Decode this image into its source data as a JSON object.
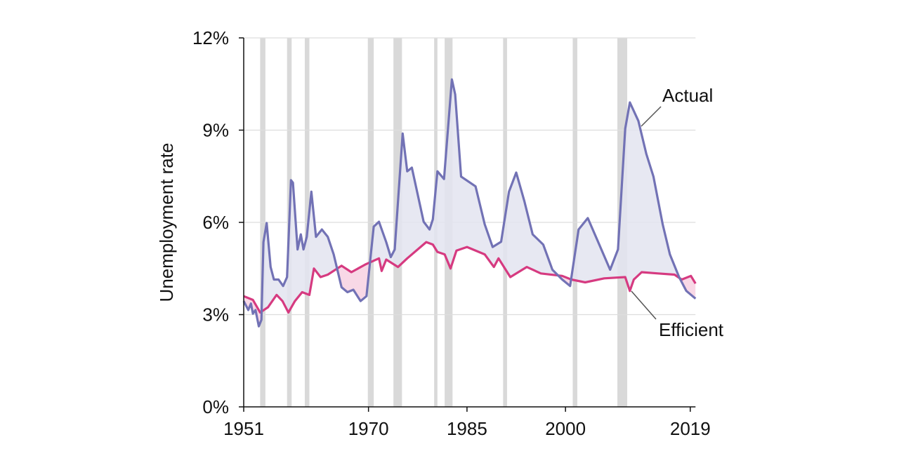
{
  "chart_data": {
    "type": "line",
    "title": "",
    "xlabel": "",
    "ylabel": "Unemployment rate",
    "xlim": [
      1951,
      2019.8
    ],
    "ylim": [
      0,
      12
    ],
    "x_ticks": [
      1951,
      1970,
      1985,
      2000,
      2019
    ],
    "x_tick_labels": [
      "1951",
      "1970",
      "1985",
      "2000",
      "2019"
    ],
    "y_ticks": [
      0,
      3,
      6,
      9,
      12
    ],
    "y_tick_labels": [
      "0%",
      "3%",
      "6%",
      "9%",
      "12%"
    ],
    "grid": "horizontal",
    "colors": {
      "actual": "#7272b5",
      "efficient": "#d63a80",
      "gap_above": "#e3e4f0",
      "gap_below": "#f8d8e6",
      "recession": "#d9d9d9",
      "grid": "#dddddd"
    },
    "recessions": [
      [
        1953.5,
        1954.3
      ],
      [
        1957.6,
        1958.3
      ],
      [
        1960.3,
        1961.0
      ],
      [
        1969.9,
        1970.8
      ],
      [
        1973.8,
        1975.1
      ],
      [
        1980.0,
        1980.5
      ],
      [
        1981.6,
        1982.8
      ],
      [
        1990.5,
        1991.1
      ],
      [
        2001.1,
        2001.8
      ],
      [
        2007.9,
        2009.4
      ]
    ],
    "series": [
      {
        "name": "Actual",
        "points": [
          [
            1951.0,
            3.44
          ],
          [
            1951.7,
            3.15
          ],
          [
            1952.1,
            3.36
          ],
          [
            1952.4,
            3.03
          ],
          [
            1952.8,
            3.15
          ],
          [
            1953.3,
            2.62
          ],
          [
            1953.7,
            2.83
          ],
          [
            1954.0,
            5.36
          ],
          [
            1954.5,
            5.98
          ],
          [
            1955.1,
            4.55
          ],
          [
            1955.6,
            4.14
          ],
          [
            1956.3,
            4.14
          ],
          [
            1957.0,
            3.93
          ],
          [
            1957.6,
            4.22
          ],
          [
            1958.2,
            7.37
          ],
          [
            1958.5,
            7.29
          ],
          [
            1959.2,
            5.12
          ],
          [
            1959.7,
            5.61
          ],
          [
            1960.1,
            5.12
          ],
          [
            1960.6,
            5.53
          ],
          [
            1961.3,
            7.0
          ],
          [
            1962.0,
            5.53
          ],
          [
            1962.9,
            5.77
          ],
          [
            1963.8,
            5.53
          ],
          [
            1964.7,
            4.96
          ],
          [
            1965.9,
            3.89
          ],
          [
            1966.8,
            3.73
          ],
          [
            1967.7,
            3.81
          ],
          [
            1968.8,
            3.44
          ],
          [
            1969.7,
            3.6
          ],
          [
            1970.8,
            5.86
          ],
          [
            1971.6,
            6.02
          ],
          [
            1972.7,
            5.36
          ],
          [
            1973.4,
            4.87
          ],
          [
            1974.0,
            5.12
          ],
          [
            1975.2,
            8.89
          ],
          [
            1975.9,
            7.66
          ],
          [
            1976.6,
            7.78
          ],
          [
            1978.4,
            6.02
          ],
          [
            1979.3,
            5.77
          ],
          [
            1979.8,
            6.1
          ],
          [
            1980.5,
            7.66
          ],
          [
            1981.5,
            7.41
          ],
          [
            1982.7,
            10.65
          ],
          [
            1983.2,
            10.16
          ],
          [
            1984.1,
            7.49
          ],
          [
            1985.2,
            7.33
          ],
          [
            1986.3,
            7.17
          ],
          [
            1987.7,
            5.94
          ],
          [
            1988.9,
            5.2
          ],
          [
            1990.2,
            5.37
          ],
          [
            1991.4,
            7.0
          ],
          [
            1992.5,
            7.62
          ],
          [
            1993.75,
            6.68
          ],
          [
            1995.0,
            5.61
          ],
          [
            1996.6,
            5.28
          ],
          [
            1998.0,
            4.46
          ],
          [
            1999.5,
            4.14
          ],
          [
            2000.7,
            3.93
          ],
          [
            2002.0,
            5.77
          ],
          [
            2003.4,
            6.14
          ],
          [
            2004.8,
            5.45
          ],
          [
            2006.8,
            4.46
          ],
          [
            2008.0,
            5.12
          ],
          [
            2009.1,
            9.05
          ],
          [
            2009.8,
            9.9
          ],
          [
            2011.1,
            9.3
          ],
          [
            2012.3,
            8.23
          ],
          [
            2013.4,
            7.49
          ],
          [
            2014.8,
            5.94
          ],
          [
            2015.9,
            4.96
          ],
          [
            2017.3,
            4.22
          ],
          [
            2018.4,
            3.77
          ],
          [
            2019.8,
            3.52
          ]
        ]
      },
      {
        "name": "Efficient",
        "points": [
          [
            1951.0,
            3.6
          ],
          [
            1952.4,
            3.48
          ],
          [
            1953.5,
            3.07
          ],
          [
            1954.7,
            3.24
          ],
          [
            1956.0,
            3.64
          ],
          [
            1956.9,
            3.44
          ],
          [
            1957.8,
            3.07
          ],
          [
            1958.8,
            3.44
          ],
          [
            1959.9,
            3.73
          ],
          [
            1961.0,
            3.64
          ],
          [
            1961.7,
            4.5
          ],
          [
            1962.7,
            4.22
          ],
          [
            1963.8,
            4.3
          ],
          [
            1965.9,
            4.59
          ],
          [
            1967.4,
            4.38
          ],
          [
            1969.5,
            4.63
          ],
          [
            1971.6,
            4.83
          ],
          [
            1972.0,
            4.42
          ],
          [
            1972.7,
            4.79
          ],
          [
            1974.5,
            4.55
          ],
          [
            1975.9,
            4.83
          ],
          [
            1978.8,
            5.36
          ],
          [
            1979.8,
            5.28
          ],
          [
            1980.5,
            5.04
          ],
          [
            1981.6,
            4.96
          ],
          [
            1982.5,
            4.5
          ],
          [
            1983.4,
            5.08
          ],
          [
            1985.0,
            5.2
          ],
          [
            1985.9,
            5.12
          ],
          [
            1987.7,
            4.96
          ],
          [
            1989.1,
            4.55
          ],
          [
            1989.8,
            4.83
          ],
          [
            1991.6,
            4.22
          ],
          [
            1994.1,
            4.55
          ],
          [
            1996.25,
            4.34
          ],
          [
            1999.5,
            4.26
          ],
          [
            2000.9,
            4.14
          ],
          [
            2003.0,
            4.05
          ],
          [
            2005.9,
            4.18
          ],
          [
            2009.1,
            4.22
          ],
          [
            2009.8,
            3.77
          ],
          [
            2010.4,
            4.14
          ],
          [
            2011.6,
            4.38
          ],
          [
            2014.1,
            4.34
          ],
          [
            2016.6,
            4.3
          ],
          [
            2017.7,
            4.14
          ],
          [
            2019.1,
            4.26
          ],
          [
            2019.8,
            4.01
          ]
        ]
      }
    ],
    "annotations": [
      "Actual",
      "Efficient"
    ]
  }
}
